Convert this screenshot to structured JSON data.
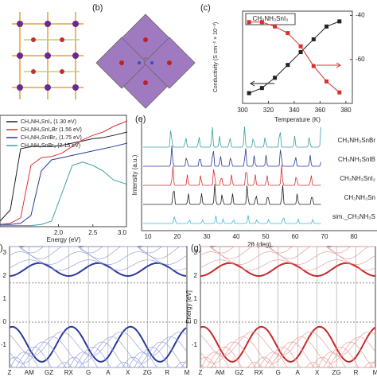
{
  "chart_data": [
    {
      "type": "line",
      "title": "CH₃NH₃SnI₃",
      "x_label": "Temperature (K)",
      "y_label": "Conductivity (S cm⁻¹ × 10⁻²)",
      "x": [
        305,
        315,
        325,
        335,
        345,
        355,
        365,
        375
      ],
      "series": [
        {
          "color": "#222222",
          "values": [
            5.4,
            5.5,
            5.7,
            5.95,
            6.2,
            6.45,
            6.7,
            6.8
          ]
        },
        {
          "color": "#d93030",
          "axis": "y2",
          "values": [
            -43,
            -43,
            -45,
            -48,
            -54,
            -63,
            -70,
            -75
          ]
        }
      ],
      "xlim": [
        300,
        385
      ],
      "xticks": [
        300,
        320,
        340,
        360,
        380
      ],
      "ylim": [
        5.2,
        7.0
      ],
      "y2lim": [
        -80,
        -38
      ],
      "y2ticks": [
        -40,
        -60
      ]
    },
    {
      "type": "line",
      "x_label": "Energy (eV)",
      "x": [
        1.15,
        1.3,
        1.45,
        1.6,
        1.75,
        1.9,
        2.05,
        2.2,
        2.35,
        2.5,
        2.65,
        2.8,
        3.0
      ],
      "series": [
        {
          "name": "CH₃NH₃SnI₃ (1.30 eV)",
          "color": "#222222",
          "values": [
            0.05,
            0.15,
            0.7,
            0.72,
            0.72,
            0.72,
            0.73,
            0.75,
            0.77,
            0.79,
            0.8,
            0.82,
            0.85
          ]
        },
        {
          "name": "CH₃NH₃SnI₂Br (1.56 eV)",
          "color": "#e03030",
          "values": [
            0.02,
            0.03,
            0.08,
            0.55,
            0.62,
            0.63,
            0.66,
            0.72,
            0.78,
            0.82,
            0.85,
            0.9,
            0.95
          ]
        },
        {
          "name": "CH₃NH₃SnIBr₂ (1.75 eV)",
          "color": "#2a3a9a",
          "values": [
            0.02,
            0.02,
            0.03,
            0.1,
            0.5,
            0.6,
            0.62,
            0.64,
            0.66,
            0.68,
            0.7,
            0.72,
            0.75
          ]
        },
        {
          "name": "CH₃NH₃SnBr₃ (2.15 eV)",
          "color": "#3aa0a0",
          "values": [
            0.01,
            0.01,
            0.01,
            0.01,
            0.02,
            0.05,
            0.3,
            0.55,
            0.58,
            0.55,
            0.5,
            0.42,
            0.38
          ]
        }
      ],
      "xlim": [
        1.15,
        3.0
      ],
      "xticks": [
        {
          "value": 2,
          "label": "2.0"
        },
        {
          "value": 2.5,
          "label": "2.5"
        },
        {
          "value": 3,
          "label": "3.0"
        }
      ],
      "ylim": [
        0,
        1
      ]
    }
  ],
  "panels": {
    "b": {
      "label": "(b)"
    },
    "c": {
      "label": "(c)"
    },
    "e": {
      "label": "(e)",
      "y_label": "Intensity (a.u.)",
      "x_label": "2θ (deg)",
      "xticks": [
        "10",
        "20",
        "30",
        "40",
        "50",
        "60",
        "70",
        "80"
      ],
      "legend": [
        "CH₃NH₃SnBr",
        "CH₃NH₃SnIB",
        "CH₃NH₃SnI₂",
        "CH₃NH₃Sn",
        "sim._CH₃NH₃S"
      ]
    },
    "f": {
      "label": ")",
      "yticks": [
        "3",
        "2",
        "1",
        "0",
        "-1"
      ],
      "kpoints": [
        "Z",
        "AM",
        "GZ",
        "RX",
        "G",
        "A",
        "X",
        "ZG",
        "R",
        "M"
      ]
    },
    "g": {
      "label": "(g)",
      "y_label": "Energy [eV]",
      "yticks": [
        "3",
        "2",
        "1",
        "0",
        "-1"
      ],
      "kpoints": [
        "Z",
        "AM",
        "GZ",
        "RX",
        "G",
        "A",
        "X",
        "ZG",
        "R",
        "M"
      ]
    }
  }
}
